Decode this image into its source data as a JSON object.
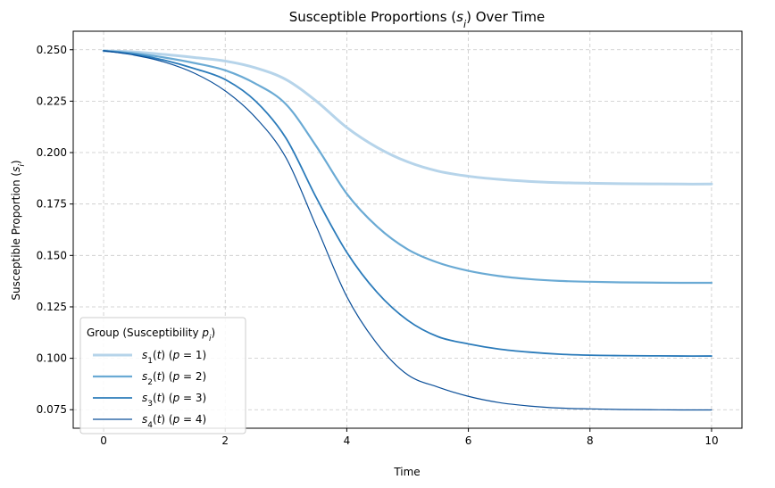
{
  "chart_data": {
    "type": "line",
    "title": "Susceptible Proportions (s_i) Over Time",
    "title_parts": [
      "Susceptible Proportions (",
      "s",
      "i",
      ") Over Time"
    ],
    "xlabel": "Time",
    "ylabel": "Susceptible Proportion (s_i)",
    "ylabel_parts": [
      "Susceptible Proportion (",
      "s",
      "i",
      ")"
    ],
    "xlim": [
      -0.5,
      10.5
    ],
    "ylim": [
      0.066,
      0.259
    ],
    "xticks": [
      0,
      2,
      4,
      6,
      8,
      10
    ],
    "xtick_labels": [
      "0",
      "2",
      "4",
      "6",
      "8",
      "10"
    ],
    "yticks": [
      0.075,
      0.1,
      0.125,
      0.15,
      0.175,
      0.2,
      0.225,
      0.25
    ],
    "ytick_labels": [
      "0.075",
      "0.100",
      "0.125",
      "0.150",
      "0.175",
      "0.200",
      "0.225",
      "0.250"
    ],
    "grid": true,
    "legend": {
      "position": "lower-left",
      "title": "Group (Susceptibility p_i)",
      "title_parts": [
        "Group (Susceptibility ",
        "p",
        "i",
        ")"
      ]
    },
    "x": [
      0,
      0.5,
      1,
      1.5,
      2,
      2.5,
      3,
      3.5,
      4,
      4.5,
      5,
      5.5,
      6,
      6.5,
      7,
      7.5,
      8,
      8.5,
      9,
      9.5,
      10
    ],
    "series": [
      {
        "name": "s1(t) (p = 1)",
        "label": {
          "sub": "1",
          "p": "1"
        },
        "color": "#b6d4ea",
        "values": [
          0.2495,
          0.2489,
          0.2477,
          0.2462,
          0.2445,
          0.2412,
          0.2355,
          0.225,
          0.2122,
          0.2025,
          0.1955,
          0.191,
          0.1885,
          0.187,
          0.186,
          0.1854,
          0.1851,
          0.1849,
          0.1848,
          0.1847,
          0.1847
        ]
      },
      {
        "name": "s2(t) (p = 2)",
        "label": {
          "sub": "2",
          "p": "2"
        },
        "color": "#6aaad4",
        "values": [
          0.2495,
          0.2483,
          0.2462,
          0.2435,
          0.24,
          0.2335,
          0.2235,
          0.203,
          0.18,
          0.164,
          0.153,
          0.1465,
          0.1425,
          0.14,
          0.1385,
          0.1376,
          0.1372,
          0.1369,
          0.1368,
          0.1367,
          0.1367
        ]
      },
      {
        "name": "s3(t) (p = 3)",
        "label": {
          "sub": "3",
          "p": "3"
        },
        "color": "#2b7bba",
        "values": [
          0.2495,
          0.2478,
          0.2449,
          0.2408,
          0.2355,
          0.225,
          0.207,
          0.178,
          0.1515,
          0.132,
          0.1185,
          0.1105,
          0.107,
          0.1045,
          0.103,
          0.102,
          0.1015,
          0.1013,
          0.1012,
          0.1011,
          0.1011
        ]
      },
      {
        "name": "s4(t) (p = 4)",
        "label": {
          "sub": "4",
          "p": "4"
        },
        "color": "#0b4f99",
        "values": [
          0.2495,
          0.2474,
          0.244,
          0.2385,
          0.23,
          0.217,
          0.1975,
          0.164,
          0.13,
          0.107,
          0.092,
          0.086,
          0.0815,
          0.0785,
          0.0768,
          0.0758,
          0.0754,
          0.0751,
          0.075,
          0.0749,
          0.0749
        ]
      }
    ]
  }
}
